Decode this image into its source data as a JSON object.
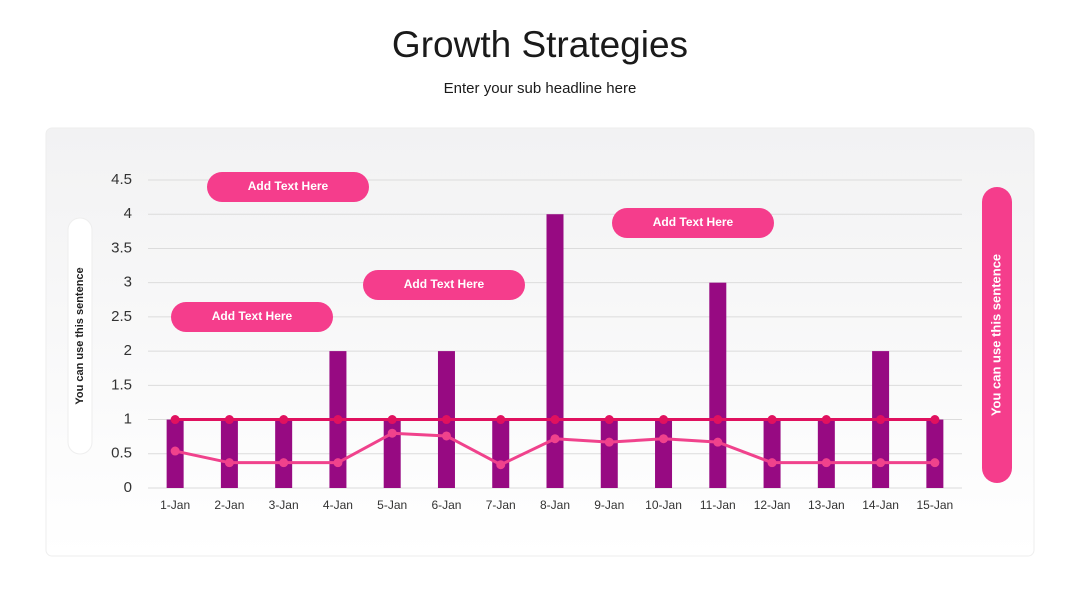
{
  "chart_data": {
    "type": "bar_line",
    "title": "Growth Strategies",
    "subtitle": "Enter your sub headline here",
    "categories": [
      "1-Jan",
      "2-Jan",
      "3-Jan",
      "4-Jan",
      "5-Jan",
      "6-Jan",
      "7-Jan",
      "8-Jan",
      "9-Jan",
      "10-Jan",
      "11-Jan",
      "12-Jan",
      "13-Jan",
      "14-Jan",
      "15-Jan"
    ],
    "series": [
      {
        "type": "bar",
        "color": "#970a82",
        "values": [
          1,
          1,
          1,
          2,
          1,
          2,
          1,
          4,
          1,
          1,
          3,
          1,
          1,
          2,
          1
        ]
      },
      {
        "type": "line",
        "color": "#e0115f",
        "values": [
          1,
          1,
          1,
          1,
          1,
          1,
          1,
          1,
          1,
          1,
          1,
          1,
          1,
          1,
          1
        ]
      },
      {
        "type": "line",
        "color": "#f0428c",
        "values": [
          0.54,
          0.37,
          0.37,
          0.37,
          0.8,
          0.76,
          0.34,
          0.72,
          0.67,
          0.72,
          0.67,
          0.37,
          0.37,
          0.37,
          0.37
        ]
      }
    ],
    "ylim": [
      0,
      4.5
    ],
    "yticks": [
      0,
      0.5,
      1,
      1.5,
      2,
      2.5,
      3,
      3.5,
      4,
      4.5
    ],
    "grid": true,
    "annotations": [
      "Add Text Here",
      "Add Text Here",
      "Add Text Here",
      "Add Text Here"
    ],
    "side_labels": [
      "You can use this sentence",
      "You can use this sentence"
    ]
  }
}
